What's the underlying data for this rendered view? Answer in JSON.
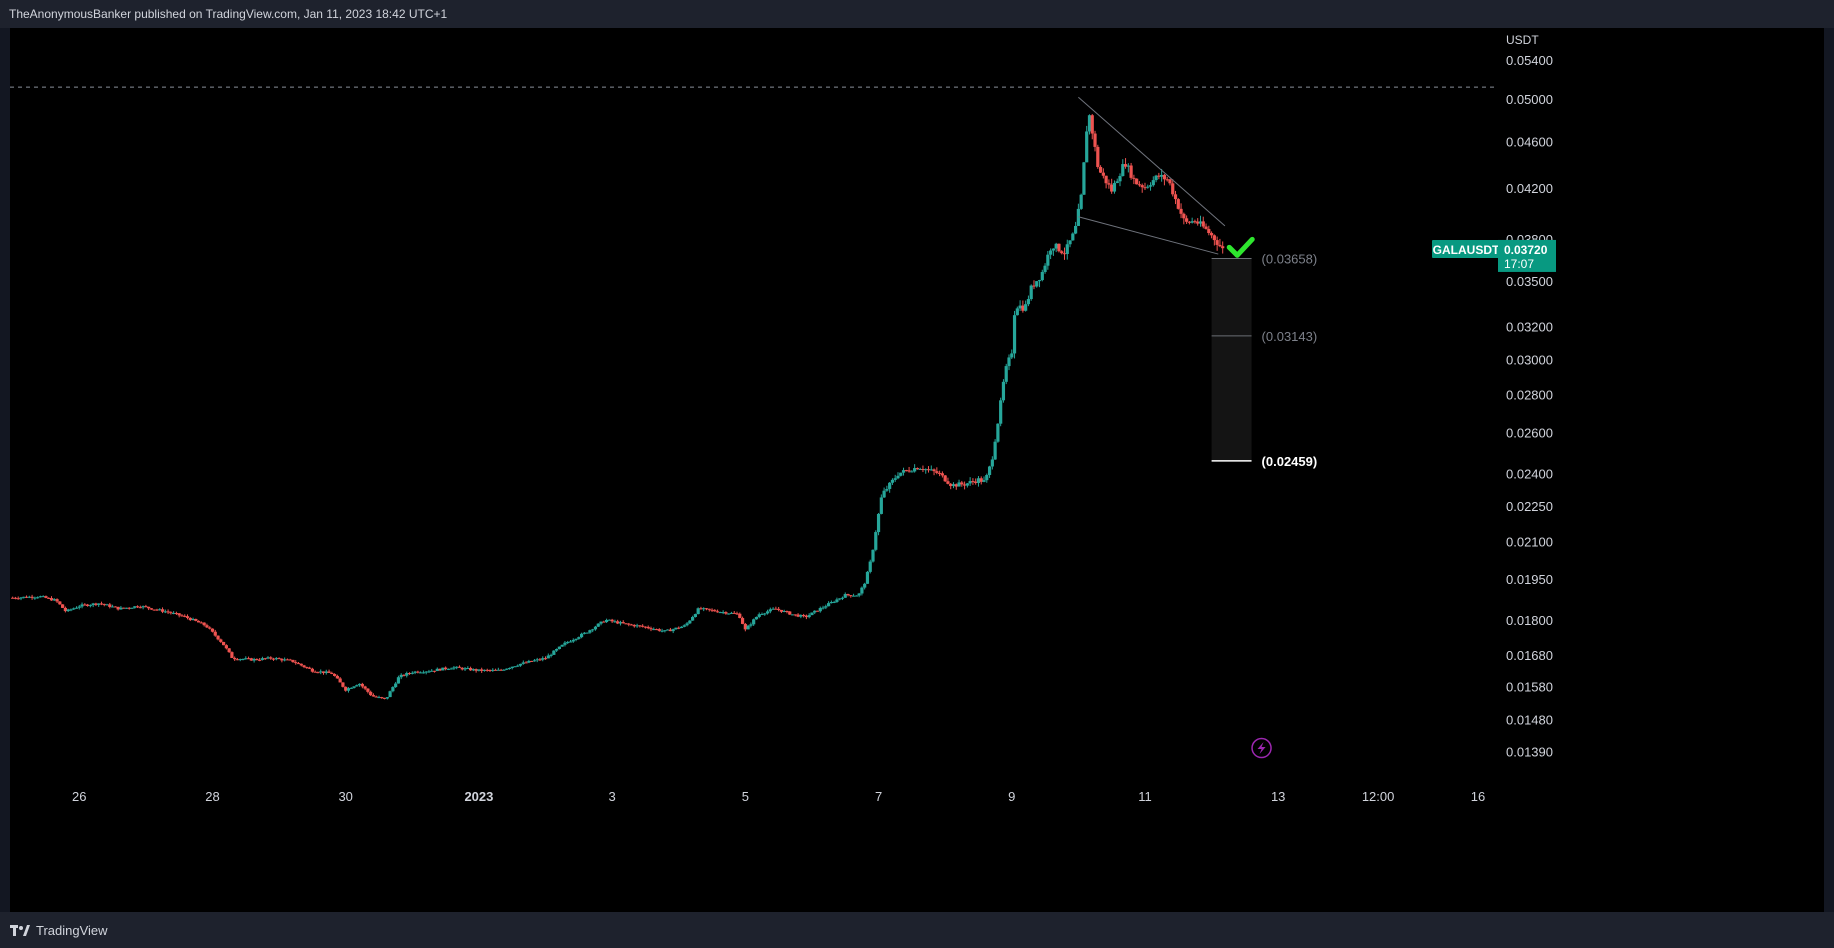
{
  "header": {
    "publisher": "TheAnonymousBanker published on TradingView.com, Jan 11, 2023 18:42 UTC+1"
  },
  "footer": {
    "brand": "TradingView"
  },
  "icons": {
    "brand_logo": "tradingview-logo-icon",
    "lightning": "lightning-icon",
    "check": "checkmark-icon"
  },
  "colors": {
    "up": "#26a69a",
    "down": "#ef5350",
    "background": "#000000",
    "accent": "#089981",
    "check": "#2ee62e",
    "lightning": "#9c27b0"
  },
  "chart_data": {
    "type": "candlestick",
    "symbol": "GALAUSDT",
    "currency": "USDT",
    "last_price": "0.03720",
    "countdown": "17:07",
    "y_scale": "log",
    "y_range": [
      0.0132,
      0.0575
    ],
    "y_ticks": [
      "0.05400",
      "0.05000",
      "0.04600",
      "0.04200",
      "0.03800",
      "0.03500",
      "0.03200",
      "0.03000",
      "0.02800",
      "0.02600",
      "0.02400",
      "0.02250",
      "0.02100",
      "0.01950",
      "0.01800",
      "0.01680",
      "0.01580",
      "0.01480",
      "0.01390"
    ],
    "x_ticks": [
      {
        "label": "26",
        "day": 0
      },
      {
        "label": "28",
        "day": 2
      },
      {
        "label": "30",
        "day": 4
      },
      {
        "label": "2023",
        "day": 6,
        "bold": true
      },
      {
        "label": "3",
        "day": 8
      },
      {
        "label": "5",
        "day": 10
      },
      {
        "label": "7",
        "day": 12
      },
      {
        "label": "9",
        "day": 14
      },
      {
        "label": "11",
        "day": 16
      },
      {
        "label": "13",
        "day": 18
      },
      {
        "label": "12:00",
        "day": 19.5
      },
      {
        "label": "16",
        "day": 21
      }
    ],
    "x_range_days": [
      -1.04,
      21.3
    ],
    "price_path": [
      [
        -1.0,
        0.0188
      ],
      [
        -0.6,
        0.01885
      ],
      [
        -0.35,
        0.0187
      ],
      [
        -0.2,
        0.0183
      ],
      [
        0.0,
        0.0185
      ],
      [
        0.3,
        0.0186
      ],
      [
        0.6,
        0.0184
      ],
      [
        0.9,
        0.0185
      ],
      [
        1.3,
        0.0183
      ],
      [
        1.6,
        0.0181
      ],
      [
        1.9,
        0.0178
      ],
      [
        2.15,
        0.0172
      ],
      [
        2.3,
        0.0167
      ],
      [
        2.6,
        0.01665
      ],
      [
        2.9,
        0.0167
      ],
      [
        3.2,
        0.0166
      ],
      [
        3.5,
        0.0163
      ],
      [
        3.8,
        0.0162
      ],
      [
        4.0,
        0.0157
      ],
      [
        4.2,
        0.0159
      ],
      [
        4.4,
        0.0155
      ],
      [
        4.6,
        0.0154
      ],
      [
        4.8,
        0.0161
      ],
      [
        5.0,
        0.01625
      ],
      [
        5.3,
        0.0163
      ],
      [
        5.6,
        0.0164
      ],
      [
        6.0,
        0.0163
      ],
      [
        6.3,
        0.0163
      ],
      [
        6.6,
        0.0165
      ],
      [
        7.0,
        0.0167
      ],
      [
        7.3,
        0.0172
      ],
      [
        7.6,
        0.01755
      ],
      [
        7.9,
        0.018
      ],
      [
        8.2,
        0.01785
      ],
      [
        8.5,
        0.01775
      ],
      [
        8.8,
        0.0176
      ],
      [
        9.1,
        0.0178
      ],
      [
        9.3,
        0.0184
      ],
      [
        9.6,
        0.0183
      ],
      [
        9.9,
        0.0182
      ],
      [
        10.0,
        0.01765
      ],
      [
        10.2,
        0.0182
      ],
      [
        10.45,
        0.0184
      ],
      [
        10.7,
        0.0182
      ],
      [
        10.9,
        0.0181
      ],
      [
        11.2,
        0.0185
      ],
      [
        11.5,
        0.0189
      ],
      [
        11.7,
        0.0189
      ],
      [
        11.8,
        0.0194
      ],
      [
        11.9,
        0.0204
      ],
      [
        12.05,
        0.023
      ],
      [
        12.3,
        0.024
      ],
      [
        12.6,
        0.0243
      ],
      [
        12.9,
        0.024
      ],
      [
        13.1,
        0.02345
      ],
      [
        13.3,
        0.0235
      ],
      [
        13.5,
        0.0237
      ],
      [
        13.6,
        0.0236
      ],
      [
        13.7,
        0.0246
      ],
      [
        13.8,
        0.0267
      ],
      [
        13.9,
        0.0293
      ],
      [
        14.0,
        0.0305
      ],
      [
        14.05,
        0.0334
      ],
      [
        14.2,
        0.0332
      ],
      [
        14.3,
        0.0346
      ],
      [
        14.45,
        0.0355
      ],
      [
        14.6,
        0.0376
      ],
      [
        14.8,
        0.037
      ],
      [
        14.95,
        0.0386
      ],
      [
        15.05,
        0.0415
      ],
      [
        15.15,
        0.049
      ],
      [
        15.3,
        0.0436
      ],
      [
        15.5,
        0.0418
      ],
      [
        15.7,
        0.0442
      ],
      [
        15.85,
        0.0425
      ],
      [
        16.0,
        0.0421
      ],
      [
        16.2,
        0.043
      ],
      [
        16.35,
        0.0427
      ],
      [
        16.45,
        0.0412
      ],
      [
        16.6,
        0.0392
      ],
      [
        16.75,
        0.0394
      ],
      [
        16.9,
        0.0388
      ],
      [
        17.05,
        0.038
      ],
      [
        17.2,
        0.037
      ]
    ],
    "wedge_lines": [
      {
        "from": {
          "day": 15.0,
          "price": 0.0502
        },
        "to": {
          "day": 17.2,
          "price": 0.039
        }
      },
      {
        "from": {
          "day": 15.0,
          "price": 0.0397
        },
        "to": {
          "day": 17.1,
          "price": 0.0369
        }
      }
    ],
    "target_zone": {
      "start_day": 17.0,
      "end_day": 17.6,
      "levels": [
        {
          "price": 0.03658,
          "label": "(0.03658)",
          "style": "muted"
        },
        {
          "price": 0.03143,
          "label": "(0.03143)",
          "style": "muted"
        },
        {
          "price": 0.02459,
          "label": "(0.02459)",
          "style": "bold"
        }
      ]
    },
    "high_line": {
      "price": 0.0512
    },
    "checkmark": {
      "day": 17.4,
      "price": 0.0371
    },
    "lightning": {
      "day": 17.75,
      "price": 0.014
    }
  }
}
